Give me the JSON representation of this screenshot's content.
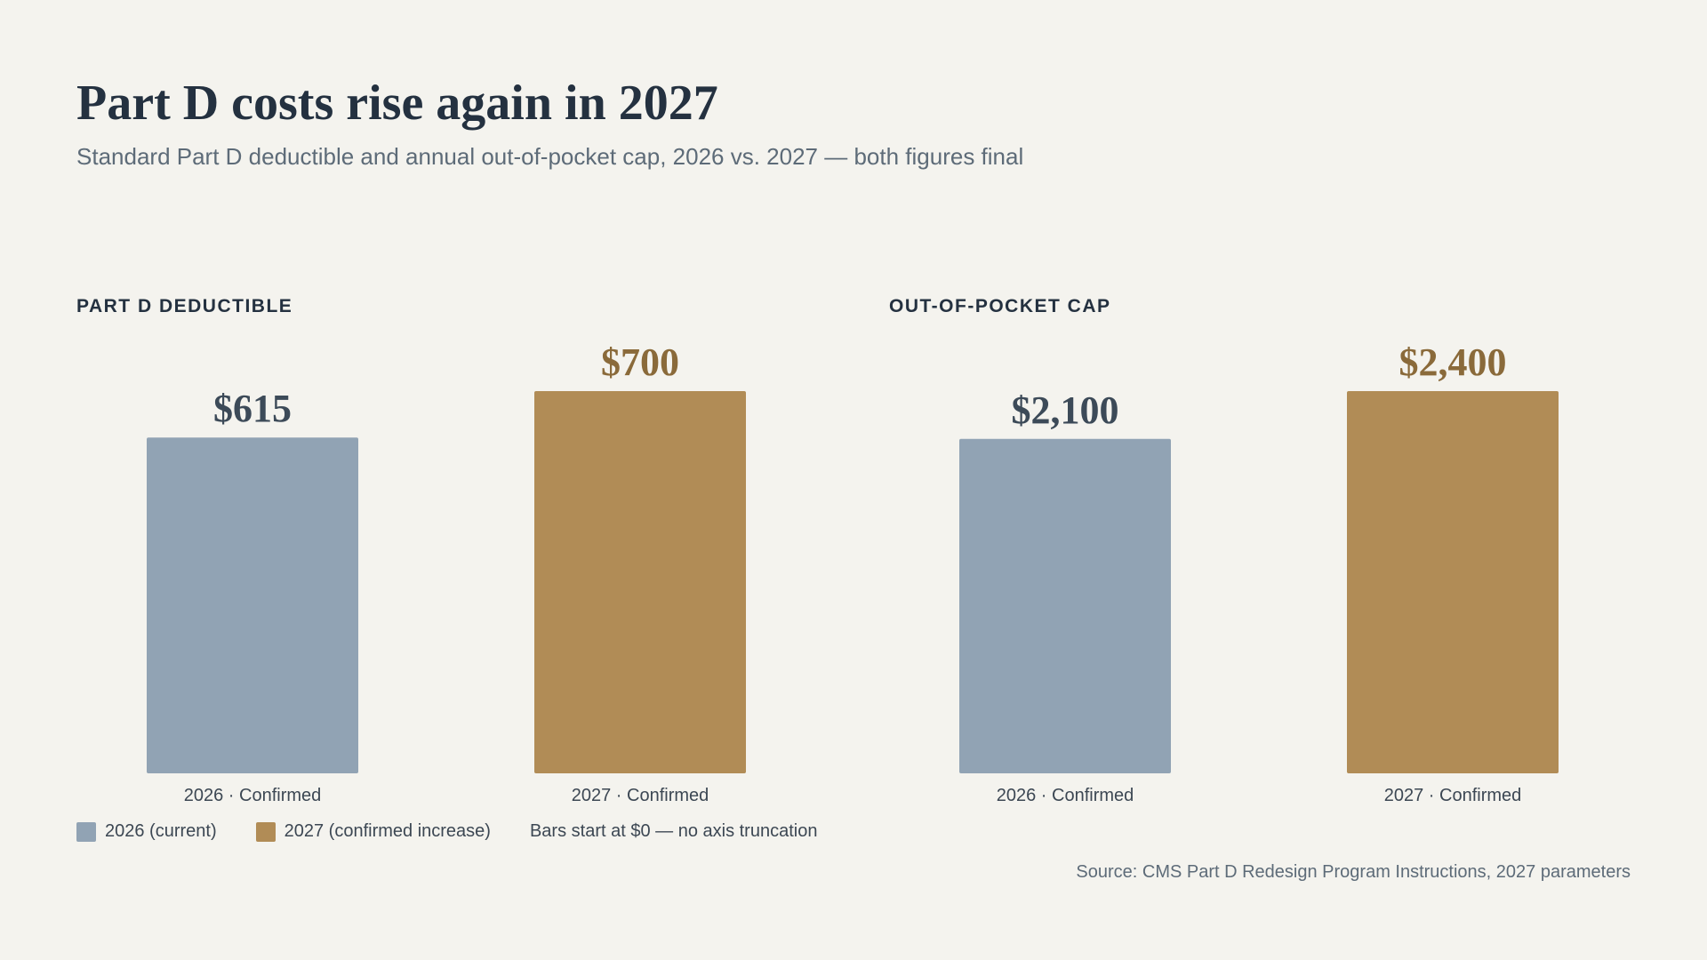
{
  "title": "Part D costs rise again in 2027",
  "subtitle": "Standard Part D deductible and annual out-of-pocket cap, 2026 vs. 2027 — both figures final",
  "colors": {
    "background": "#f4f3ee",
    "series_2026": "#91a3b4",
    "series_2027": "#b18c56",
    "value_2026_text": "#3c4a58",
    "value_2027_text": "#8a6a3a"
  },
  "legend": {
    "items": [
      {
        "label": "2026 (current)",
        "color": "#91a3b4"
      },
      {
        "label": "2027 (confirmed increase)",
        "color": "#b18c56"
      }
    ],
    "note": "Bars start at $0 — no axis truncation"
  },
  "source": "Source: CMS Part D Redesign Program Instructions, 2027 parameters",
  "chart_data": [
    {
      "type": "bar",
      "title": "PART D DEDUCTIBLE",
      "categories": [
        "2026 · Confirmed",
        "2027 · Confirmed"
      ],
      "values": [
        615,
        700
      ],
      "value_labels": [
        "$615",
        "$700"
      ],
      "series_colors": [
        "#91a3b4",
        "#b18c56"
      ],
      "ylim": [
        0,
        700
      ],
      "grid": false
    },
    {
      "type": "bar",
      "title": "OUT-OF-POCKET CAP",
      "categories": [
        "2026 · Confirmed",
        "2027 · Confirmed"
      ],
      "values": [
        2100,
        2400
      ],
      "value_labels": [
        "$2,100",
        "$2,400"
      ],
      "series_colors": [
        "#91a3b4",
        "#b18c56"
      ],
      "ylim": [
        0,
        2400
      ],
      "grid": false
    }
  ]
}
